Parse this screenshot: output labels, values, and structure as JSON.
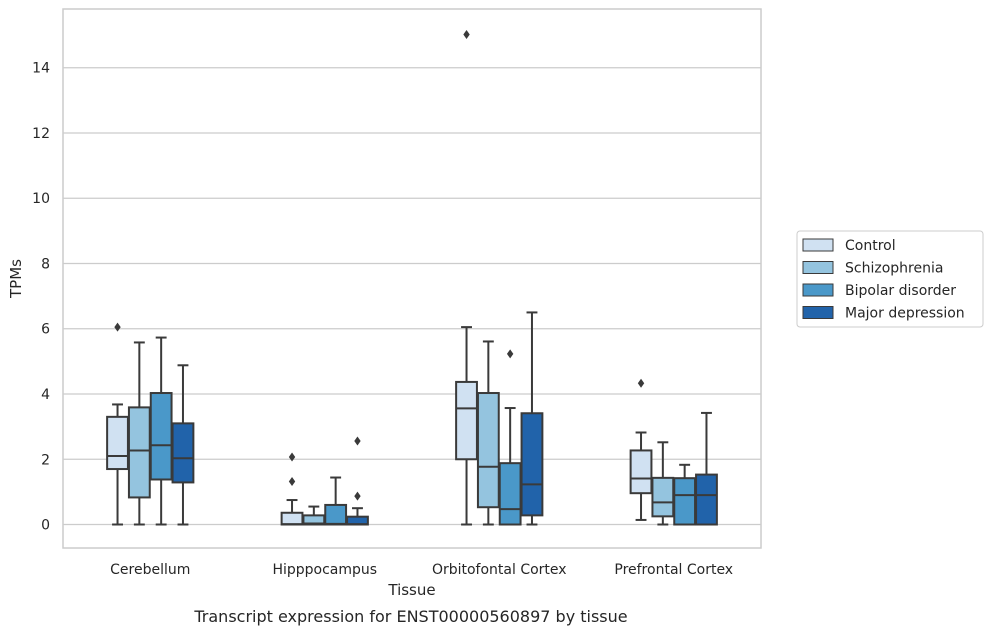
{
  "chart_data": {
    "type": "box",
    "title": "Transcript expression for ENST00000560897 by tissue",
    "xlabel": "Tissue",
    "ylabel": "TPMs",
    "ylim": [
      -0.72,
      15.8
    ],
    "yticks": [
      0,
      2,
      4,
      6,
      8,
      10,
      12,
      14
    ],
    "grid": "horizontal",
    "legend_position": "right",
    "categories": [
      "Cerebellum",
      "Hipppocampus",
      "Orbitofontal Cortex",
      "Prefrontal Cortex"
    ],
    "series": [
      {
        "name": "Control",
        "color": "#d0e1f2",
        "boxes": [
          {
            "whislo": 0,
            "q1": 1.7,
            "med": 2.1,
            "q3": 3.3,
            "whishi": 3.68,
            "fliers": [
              6.05
            ]
          },
          {
            "whislo": 0,
            "q1": 0,
            "med": 0.01,
            "q3": 0.36,
            "whishi": 0.75,
            "fliers": [
              1.32,
              2.07
            ]
          },
          {
            "whislo": 0,
            "q1": 2.0,
            "med": 3.56,
            "q3": 4.37,
            "whishi": 6.05,
            "fliers": [
              15.02
            ]
          },
          {
            "whislo": 0.14,
            "q1": 0.96,
            "med": 1.41,
            "q3": 2.27,
            "whishi": 2.82,
            "fliers": [
              4.33
            ]
          }
        ]
      },
      {
        "name": "Schizophrenia",
        "color": "#94c4df",
        "boxes": [
          {
            "whislo": 0,
            "q1": 0.83,
            "med": 2.27,
            "q3": 3.59,
            "whishi": 5.58,
            "fliers": []
          },
          {
            "whislo": 0,
            "q1": 0,
            "med": 0.03,
            "q3": 0.28,
            "whishi": 0.55,
            "fliers": []
          },
          {
            "whislo": 0,
            "q1": 0.53,
            "med": 1.77,
            "q3": 4.03,
            "whishi": 5.61,
            "fliers": []
          },
          {
            "whislo": 0,
            "q1": 0.25,
            "med": 0.68,
            "q3": 1.43,
            "whishi": 2.52,
            "fliers": []
          }
        ]
      },
      {
        "name": "Bipolar disorder",
        "color": "#4a98c9",
        "boxes": [
          {
            "whislo": 0,
            "q1": 1.38,
            "med": 2.43,
            "q3": 4.03,
            "whishi": 5.73,
            "fliers": []
          },
          {
            "whislo": 0,
            "q1": 0,
            "med": 0.02,
            "q3": 0.6,
            "whishi": 1.44,
            "fliers": []
          },
          {
            "whislo": 0,
            "q1": 0,
            "med": 0.47,
            "q3": 1.88,
            "whishi": 3.57,
            "fliers": [
              5.23
            ]
          },
          {
            "whislo": 0,
            "q1": 0,
            "med": 0.9,
            "q3": 1.42,
            "whishi": 1.83,
            "fliers": []
          }
        ]
      },
      {
        "name": "Major depression",
        "color": "#2163aa",
        "boxes": [
          {
            "whislo": 0,
            "q1": 1.29,
            "med": 2.03,
            "q3": 3.1,
            "whishi": 4.88,
            "fliers": []
          },
          {
            "whislo": 0,
            "q1": 0,
            "med": 0.01,
            "q3": 0.24,
            "whishi": 0.5,
            "fliers": [
              0.87,
              2.56
            ]
          },
          {
            "whislo": 0,
            "q1": 0.28,
            "med": 1.23,
            "q3": 3.41,
            "whishi": 6.5,
            "fliers": []
          },
          {
            "whislo": 0,
            "q1": 0,
            "med": 0.9,
            "q3": 1.53,
            "whishi": 3.42,
            "fliers": []
          }
        ]
      }
    ]
  }
}
